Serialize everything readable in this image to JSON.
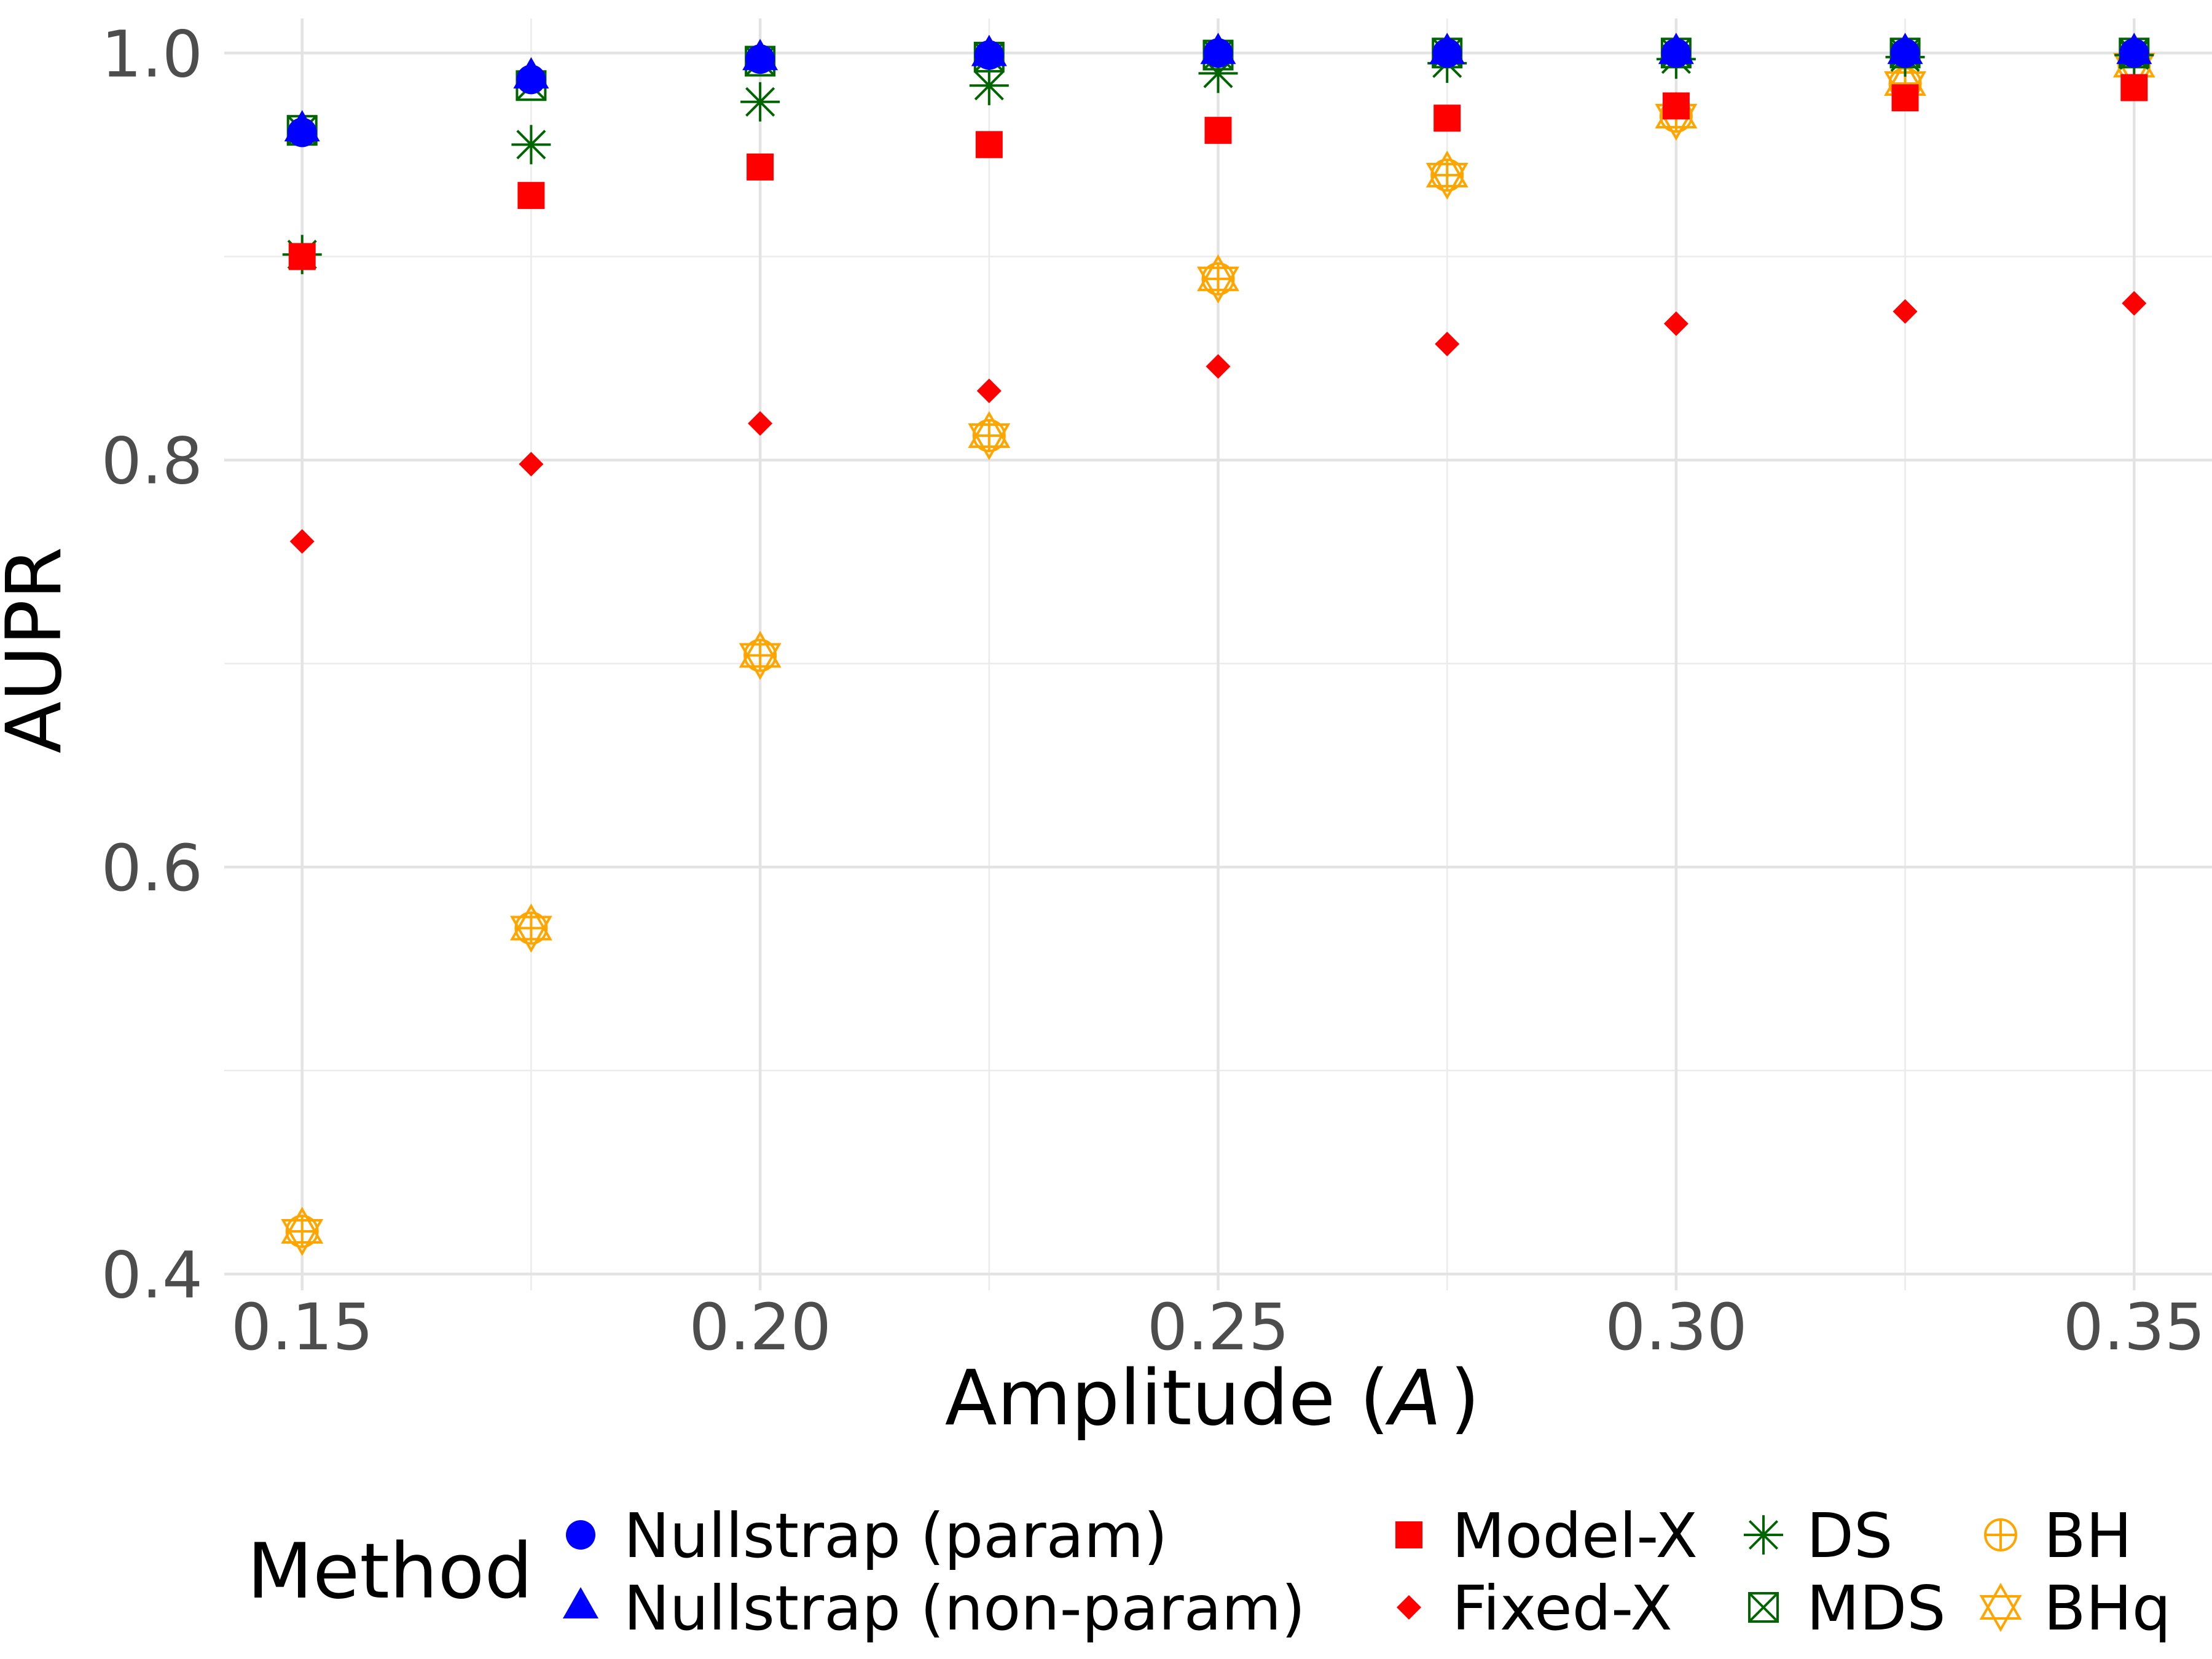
{
  "chart_data": {
    "type": "scatter",
    "title": "",
    "xlabel": "Amplitude (",
    "xlabel_var": "A",
    "xlabel_close": ")",
    "ylabel": "AUPR",
    "xlim": [
      0.1415,
      0.3585
    ],
    "ylim": [
      0.392,
      1.017
    ],
    "x_major_ticks": [
      0.15,
      0.2,
      0.25,
      0.3,
      0.35
    ],
    "x_tick_labels": [
      "0.15",
      "0.20",
      "0.25",
      "0.30",
      "0.35"
    ],
    "x_minor_ticks": [
      0.175,
      0.225,
      0.275,
      0.325
    ],
    "y_major_ticks": [
      0.4,
      0.6,
      0.8,
      1.0
    ],
    "y_tick_labels": [
      "0.4",
      "0.6",
      "0.8",
      "1.0"
    ],
    "y_minor_ticks": [
      0.5,
      0.7,
      0.9
    ],
    "grid": true,
    "legend": {
      "title": "Method",
      "position": "bottom"
    },
    "x": [
      0.15,
      0.175,
      0.2,
      0.225,
      0.25,
      0.275,
      0.3,
      0.325,
      0.35
    ],
    "series": [
      {
        "name": "Nullstrap (param)",
        "shape": "circle",
        "color": "#0000ff",
        "values": [
          0.961,
          0.987,
          0.997,
          0.999,
          1.0,
          1.0,
          1.0,
          1.0,
          1.0
        ]
      },
      {
        "name": "Nullstrap (non-param)",
        "shape": "triangle",
        "color": "#0000ff",
        "values": [
          0.962,
          0.988,
          0.997,
          0.999,
          1.0,
          1.0,
          1.0,
          1.0,
          1.0
        ]
      },
      {
        "name": "Model-X",
        "shape": "square",
        "color": "#ff0000",
        "values": [
          0.9,
          0.93,
          0.944,
          0.955,
          0.962,
          0.968,
          0.974,
          0.978,
          0.983
        ]
      },
      {
        "name": "Fixed-X",
        "shape": "diamond",
        "color": "#ff0000",
        "values": [
          0.76,
          0.798,
          0.818,
          0.834,
          0.846,
          0.857,
          0.867,
          0.873,
          0.877
        ]
      },
      {
        "name": "DS",
        "shape": "asterisk",
        "color": "#006400",
        "values": [
          0.901,
          0.955,
          0.976,
          0.984,
          0.99,
          0.995,
          0.997,
          0.998,
          0.999
        ]
      },
      {
        "name": "MDS",
        "shape": "boxcross",
        "color": "#006400",
        "values": [
          0.962,
          0.984,
          0.996,
          0.998,
          0.999,
          1.0,
          1.0,
          1.0,
          1.0
        ]
      },
      {
        "name": "BH",
        "shape": "circleplus",
        "color": "#ffa500",
        "values": [
          0.421,
          0.57,
          0.704,
          0.812,
          0.889,
          0.94,
          0.969,
          0.985,
          0.994
        ]
      },
      {
        "name": "BHq",
        "shape": "star",
        "color": "#ffa500",
        "values": [
          0.421,
          0.57,
          0.704,
          0.812,
          0.889,
          0.94,
          0.969,
          0.985,
          0.994
        ]
      }
    ]
  }
}
